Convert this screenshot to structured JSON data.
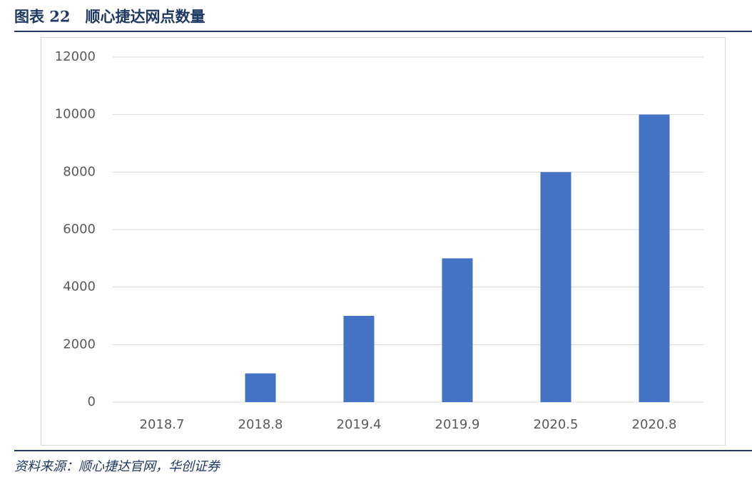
{
  "chart_data": {
    "type": "bar",
    "title": "图表 22　顺心捷达网点数量",
    "categories": [
      "2018.7",
      "2018.8",
      "2019.4",
      "2019.9",
      "2020.5",
      "2020.8"
    ],
    "values": [
      0,
      1000,
      3000,
      5000,
      8000,
      10000
    ],
    "color": "#4472c4",
    "ylim": [
      0,
      12000
    ],
    "yticks": [
      0,
      2000,
      4000,
      6000,
      8000,
      10000,
      12000
    ],
    "grid": true,
    "source": "资料来源：顺心捷达官网，华创证券"
  }
}
